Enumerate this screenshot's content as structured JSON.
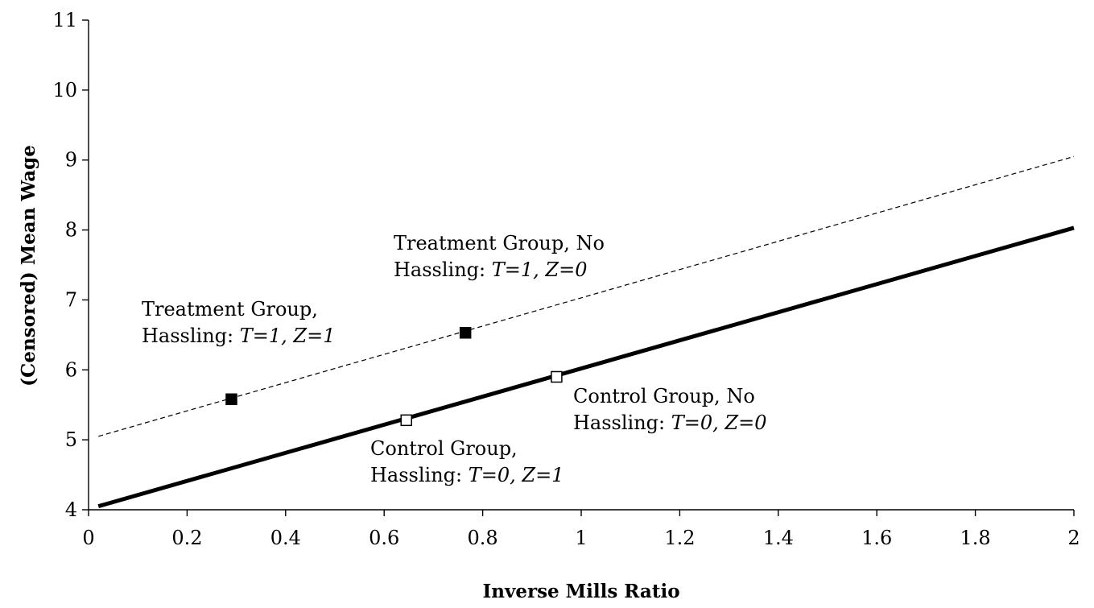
{
  "chart_data": {
    "type": "scatter",
    "title": "",
    "xlabel": "Inverse Mills Ratio",
    "ylabel": "(Censored) Mean Wage",
    "xlim": [
      0,
      2
    ],
    "ylim": [
      4,
      11
    ],
    "x_ticks": [
      "0",
      "0.2",
      "0.4",
      "0.6",
      "0.8",
      "1",
      "1.2",
      "1.4",
      "1.6",
      "1.8",
      "2"
    ],
    "y_ticks": [
      "4",
      "5",
      "6",
      "7",
      "8",
      "9",
      "10",
      "11"
    ],
    "grid": false,
    "legend": "none",
    "lines": [
      {
        "style": "dashed",
        "x": [
          0.02,
          2.0
        ],
        "y": [
          5.05,
          9.05
        ]
      },
      {
        "style": "solid-thick",
        "x": [
          0.02,
          2.0
        ],
        "y": [
          4.05,
          8.03
        ]
      }
    ],
    "points": [
      {
        "x": 0.29,
        "y": 5.58,
        "marker": "filled-square",
        "label_lines": [
          [
            "Treatment Group,",
            ""
          ],
          [
            "Hassling: ",
            "T=1, Z=1"
          ]
        ]
      },
      {
        "x": 0.765,
        "y": 6.53,
        "marker": "filled-square",
        "label_lines": [
          [
            "Treatment Group, No",
            ""
          ],
          [
            "Hassling: ",
            "T=1, Z=0"
          ]
        ]
      },
      {
        "x": 0.645,
        "y": 5.28,
        "marker": "open-square",
        "label_lines": [
          [
            "Control Group,",
            ""
          ],
          [
            "Hassling: ",
            "T=0, Z=1"
          ]
        ]
      },
      {
        "x": 0.95,
        "y": 5.9,
        "marker": "open-square",
        "label_lines": [
          [
            "Control Group, No",
            ""
          ],
          [
            "Hassling: ",
            "T=0, Z=0"
          ]
        ]
      }
    ]
  }
}
